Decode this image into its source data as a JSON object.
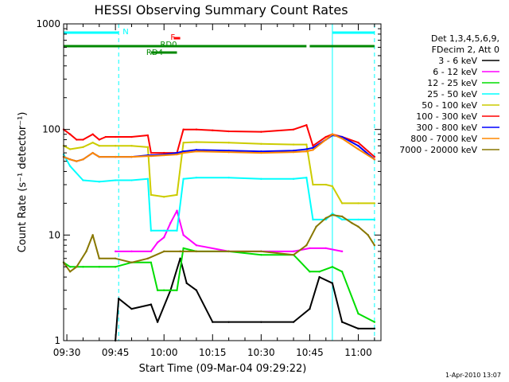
{
  "chart_data": {
    "type": "line",
    "title": "HESSI Observing Summary Count Rates",
    "xlabel": "Start Time (09-Mar-04 09:29:22)",
    "ylabel": "Count Rate (s⁻¹ detector⁻¹)",
    "yscale": "log",
    "ylim": [
      1,
      1000
    ],
    "xlim": [
      "09:29",
      "11:07"
    ],
    "y_ticks": [
      "1",
      "10",
      "100",
      "1000"
    ],
    "x_ticks": [
      "09:30",
      "09:45",
      "10:00",
      "10:15",
      "10:30",
      "10:45",
      "11:00"
    ],
    "footer_timestamp": "1-Apr-2010 13:07",
    "legend_position": "right",
    "legend_header": [
      "Det 1,3,4,5,6,9,",
      "FDecim 2, Att 0"
    ],
    "series": [
      {
        "name": "3 - 6 keV",
        "color": "#000000",
        "x": [
          "09:29",
          "09:35",
          "09:45",
          "09:46",
          "09:50",
          "09:56",
          "09:58",
          "10:02",
          "10:05",
          "10:07",
          "10:10",
          "10:15",
          "10:20",
          "10:30",
          "10:40",
          "10:45",
          "10:48",
          "10:52",
          "10:55",
          "11:00",
          "11:05"
        ],
        "y": [
          null,
          null,
          1.0,
          2.5,
          2.0,
          2.2,
          1.5,
          3.0,
          6.0,
          3.5,
          3.0,
          1.5,
          1.5,
          1.5,
          1.5,
          2.0,
          4.0,
          3.5,
          1.5,
          1.3,
          1.3
        ]
      },
      {
        "name": "6 - 12 keV",
        "color": "#ff00ff",
        "x": [
          "09:29",
          "09:35",
          "09:45",
          "09:50",
          "09:56",
          "09:58",
          "10:00",
          "10:02",
          "10:04",
          "10:06",
          "10:10",
          "10:20",
          "10:30",
          "10:40",
          "10:45",
          "10:50",
          "10:55",
          "11:00"
        ],
        "y": [
          null,
          null,
          7.0,
          7.0,
          7.0,
          8.5,
          9.5,
          13.0,
          17.0,
          10.0,
          8.0,
          7.0,
          7.0,
          7.0,
          7.5,
          7.5,
          7.0,
          null
        ]
      },
      {
        "name": "12 - 25 keV",
        "color": "#00dd00",
        "x": [
          "09:29",
          "09:31",
          "09:35",
          "09:40",
          "09:45",
          "09:50",
          "09:56",
          "09:58",
          "10:00",
          "10:04",
          "10:06",
          "10:10",
          "10:20",
          "10:30",
          "10:40",
          "10:45",
          "10:48",
          "10:52",
          "10:55",
          "11:00",
          "11:05"
        ],
        "y": [
          5.5,
          5.0,
          5.0,
          5.0,
          5.0,
          5.5,
          5.5,
          3.0,
          3.0,
          3.0,
          7.5,
          7.0,
          7.0,
          6.5,
          6.5,
          4.5,
          4.5,
          5.0,
          4.5,
          1.8,
          1.5
        ]
      },
      {
        "name": "25 - 50 keV",
        "color": "#00ffff",
        "x": [
          "09:29",
          "09:31",
          "09:35",
          "09:40",
          "09:45",
          "09:50",
          "09:55",
          "09:56",
          "10:00",
          "10:04",
          "10:06",
          "10:10",
          "10:20",
          "10:30",
          "10:40",
          "10:44",
          "10:46",
          "10:50",
          "10:52",
          "10:55",
          "11:00",
          "11:05"
        ],
        "y": [
          58,
          45,
          33,
          32,
          33,
          33,
          34,
          11,
          11,
          11,
          34,
          35,
          35,
          34,
          34,
          35,
          14,
          14,
          16,
          14,
          14,
          14
        ]
      },
      {
        "name": "50 - 100 keV",
        "color": "#cccc00",
        "x": [
          "09:29",
          "09:31",
          "09:35",
          "09:38",
          "09:40",
          "09:45",
          "09:50",
          "09:55",
          "09:56",
          "10:00",
          "10:04",
          "10:06",
          "10:10",
          "10:20",
          "10:30",
          "10:40",
          "10:44",
          "10:46",
          "10:50",
          "10:52",
          "10:55",
          "11:00",
          "11:05"
        ],
        "y": [
          70,
          65,
          68,
          75,
          70,
          70,
          70,
          68,
          24,
          23,
          24,
          75,
          76,
          75,
          73,
          72,
          72,
          30,
          30,
          29,
          20,
          20,
          20
        ]
      },
      {
        "name": "100 - 300 keV",
        "color": "#ff0000",
        "x": [
          "09:29",
          "09:31",
          "09:33",
          "09:35",
          "09:38",
          "09:40",
          "09:42",
          "09:45",
          "09:50",
          "09:55",
          "09:56",
          "10:00",
          "10:04",
          "10:06",
          "10:10",
          "10:15",
          "10:20",
          "10:30",
          "10:40",
          "10:44",
          "10:46",
          "10:50",
          "10:52",
          "10:55",
          "11:00",
          "11:05"
        ],
        "y": [
          100,
          90,
          80,
          80,
          90,
          80,
          85,
          85,
          85,
          88,
          60,
          60,
          60,
          100,
          100,
          98,
          96,
          95,
          100,
          110,
          70,
          85,
          90,
          85,
          75,
          55
        ]
      },
      {
        "name": "300 - 800 keV",
        "color": "#0000ff",
        "x": [
          "09:29",
          "09:31",
          "09:33",
          "09:35",
          "09:38",
          "09:40",
          "09:45",
          "09:50",
          "09:55",
          "09:56",
          "10:00",
          "10:04",
          "10:06",
          "10:10",
          "10:20",
          "10:30",
          "10:40",
          "10:44",
          "10:46",
          "10:50",
          "10:52",
          "10:55",
          "11:00",
          "11:05"
        ],
        "y": [
          55,
          52,
          50,
          52,
          60,
          55,
          55,
          55,
          57,
          57,
          58,
          60,
          62,
          64,
          63,
          62,
          63,
          65,
          67,
          80,
          88,
          85,
          70,
          52
        ]
      },
      {
        "name": "800 - 7000 keV",
        "color": "#ff8800",
        "x": [
          "09:29",
          "09:31",
          "09:33",
          "09:35",
          "09:38",
          "09:40",
          "09:45",
          "09:50",
          "09:55",
          "09:56",
          "10:00",
          "10:04",
          "10:06",
          "10:10",
          "10:20",
          "10:30",
          "10:40",
          "10:44",
          "10:46",
          "10:50",
          "10:52",
          "10:55",
          "11:00",
          "11:05"
        ],
        "y": [
          55,
          52,
          50,
          52,
          60,
          55,
          55,
          55,
          56,
          56,
          57,
          58,
          60,
          62,
          61,
          60,
          61,
          62,
          64,
          80,
          90,
          82,
          65,
          52
        ]
      },
      {
        "name": "7000 - 20000 keV",
        "color": "#887700",
        "x": [
          "09:29",
          "09:31",
          "09:33",
          "09:36",
          "09:38",
          "09:40",
          "09:45",
          "09:50",
          "09:55",
          "10:00",
          "10:05",
          "10:10",
          "10:20",
          "10:30",
          "10:40",
          "10:44",
          "10:47",
          "10:50",
          "10:52",
          "10:55",
          "10:58",
          "11:00",
          "11:03",
          "11:05"
        ],
        "y": [
          5.5,
          4.5,
          5.0,
          7.0,
          10.0,
          6.0,
          6.0,
          5.5,
          6.0,
          7.0,
          7.0,
          7.0,
          7.0,
          7.0,
          6.5,
          8.0,
          12.0,
          14.5,
          15.5,
          15.0,
          13.0,
          12.0,
          10.0,
          8.0
        ]
      }
    ],
    "annotations": {
      "night": [
        {
          "label": "N",
          "start": "09:29",
          "end": "09:46"
        },
        {
          "label": "",
          "start": "10:52",
          "end": "11:05"
        }
      ],
      "flare": [
        {
          "label": "F",
          "start": "10:03",
          "end": "10:05"
        }
      ],
      "saa": [
        {
          "label": "RD0",
          "start": "09:29",
          "end": "10:44"
        },
        {
          "label": "",
          "start": "10:45",
          "end": "11:05"
        }
      ],
      "rd4": [
        {
          "label": "RD4",
          "start": "09:56",
          "end": "10:04"
        }
      ]
    },
    "vertical_markers": [
      {
        "time": "09:29",
        "style": "solid",
        "color": "#00ffff"
      },
      {
        "time": "09:46",
        "style": "dashed",
        "color": "#00ffff"
      },
      {
        "time": "10:52",
        "style": "solid",
        "color": "#00ffff"
      },
      {
        "time": "11:05",
        "style": "dashed",
        "color": "#00ffff"
      }
    ]
  }
}
